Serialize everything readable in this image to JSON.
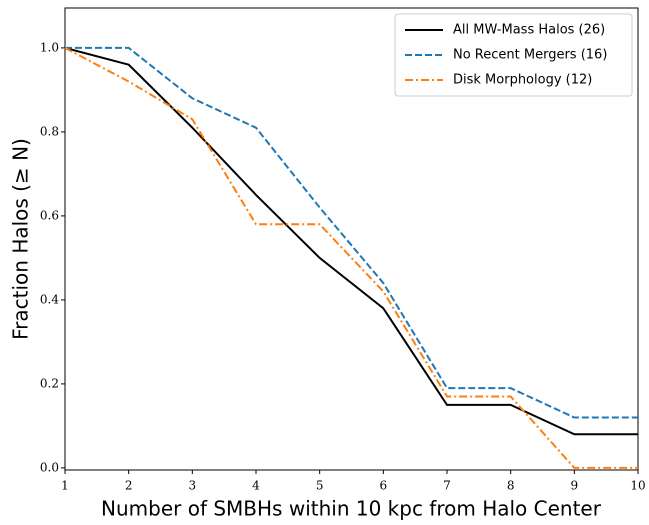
{
  "chart_data": {
    "type": "line",
    "xlabel": "Number of SMBHs within 10 kpc from Halo Center",
    "ylabel": "Fraction Halos (≥ N)",
    "x": [
      1,
      2,
      3,
      4,
      5,
      6,
      7,
      8,
      9,
      10
    ],
    "series": [
      {
        "name": "All MW-Mass Halos (26)",
        "color": "#000000",
        "linestyle": "solid",
        "values": [
          1.0,
          0.96,
          0.81,
          0.65,
          0.5,
          0.38,
          0.15,
          0.15,
          0.08,
          0.08
        ]
      },
      {
        "name": "No Recent Mergers (16)",
        "color": "#1f77b4",
        "linestyle": "dashed",
        "values": [
          1.0,
          1.0,
          0.88,
          0.81,
          0.62,
          0.44,
          0.19,
          0.19,
          0.12,
          0.12
        ]
      },
      {
        "name": "Disk Morphology (12)",
        "color": "#ff7f0e",
        "linestyle": "dashdot",
        "values": [
          1.0,
          0.92,
          0.83,
          0.58,
          0.58,
          0.42,
          0.17,
          0.17,
          0.0,
          0.0
        ]
      }
    ],
    "xlim": [
      1,
      10
    ],
    "xticks": [
      1,
      2,
      3,
      4,
      5,
      6,
      7,
      8,
      9,
      10
    ],
    "ylim": [
      -0.005,
      1.095
    ],
    "yticks": [
      {
        "value": 0,
        "label": "0.0"
      },
      0.2,
      0.4,
      0.6,
      0.8,
      {
        "value": 1,
        "label": "1.0"
      }
    ],
    "legend": "upper right",
    "grid": false
  }
}
